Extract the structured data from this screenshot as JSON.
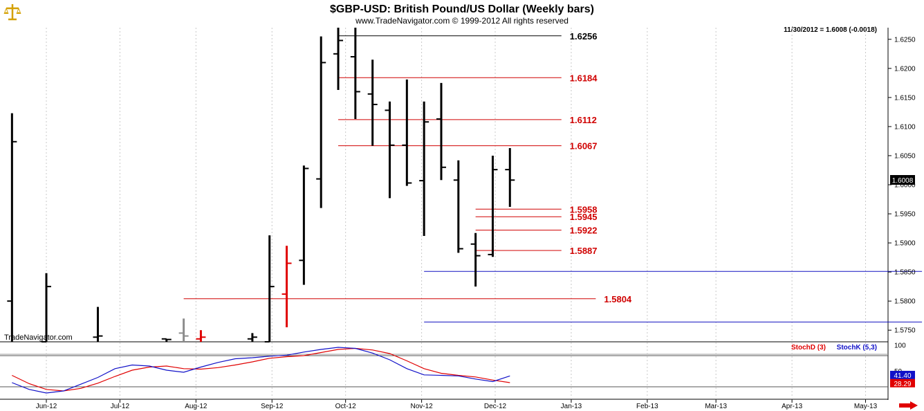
{
  "header": {
    "title": "$GBP-USD:  British Pound/US Dollar  (Weekly bars)",
    "subtitle": "www.TradeNavigator.com © 1999-2012 All rights reserved",
    "last_info": "11/30/2012 = 1.6008 (-0.0018)",
    "watermark": "TradeNavigator.com"
  },
  "colors": {
    "bar": "#000000",
    "bar_gray": "#8c8c8c",
    "bar_red": "#e00000",
    "red_level": "#d00000",
    "blue_level": "#1010c0",
    "stoch_d": "#e00000",
    "stoch_k": "#1010c8",
    "grid": "#c8c8c8",
    "logo": "#d4a000"
  },
  "chart_data": {
    "type": "ohlc",
    "symbol": "$GBP-USD",
    "interval": "weekly",
    "ylim": [
      1.573,
      1.627
    ],
    "y_ticks": [
      "1.6250",
      "1.6200",
      "1.6150",
      "1.6100",
      "1.6050",
      "1.6000",
      "1.5950",
      "1.5900",
      "1.5850",
      "1.5800",
      "1.5750"
    ],
    "x_labels": [
      "Jun-12",
      "Jul-12",
      "Aug-12",
      "Sep-12",
      "Oct-12",
      "Nov-12",
      "Dec-12",
      "Jan-13",
      "Feb-13",
      "Mar-13",
      "Apr-13",
      "May-13"
    ],
    "last_value_label": "1.6008",
    "bars": [
      {
        "date": "2012-05-18",
        "open": 1.58,
        "high": 1.6123,
        "low": 1.573,
        "close": 1.6074,
        "color": "black"
      },
      {
        "date": "2012-06-01",
        "open": 1.573,
        "high": 1.5848,
        "low": 1.573,
        "close": 1.5825,
        "color": "black"
      },
      {
        "date": "2012-06-22",
        "open": 1.5738,
        "high": 1.579,
        "low": 1.573,
        "close": 1.574,
        "color": "black"
      },
      {
        "date": "2012-07-20",
        "open": 1.5735,
        "high": 1.5735,
        "low": 1.573,
        "close": 1.5734,
        "color": "black"
      },
      {
        "date": "2012-07-27",
        "open": 1.5745,
        "high": 1.577,
        "low": 1.573,
        "close": 1.574,
        "color": "gray"
      },
      {
        "date": "2012-08-03",
        "open": 1.5735,
        "high": 1.575,
        "low": 1.573,
        "close": 1.5738,
        "color": "red"
      },
      {
        "date": "2012-08-24",
        "open": 1.5735,
        "high": 1.5745,
        "low": 1.573,
        "close": 1.5738,
        "color": "black"
      },
      {
        "date": "2012-08-31",
        "open": 1.573,
        "high": 1.5913,
        "low": 1.573,
        "close": 1.5825,
        "color": "black"
      },
      {
        "date": "2012-09-07",
        "open": 1.5812,
        "high": 1.5895,
        "low": 1.5755,
        "close": 1.5865,
        "color": "red"
      },
      {
        "date": "2012-09-14",
        "open": 1.587,
        "high": 1.6033,
        "low": 1.5828,
        "close": 1.6028,
        "color": "black"
      },
      {
        "date": "2012-09-21",
        "open": 1.601,
        "high": 1.6255,
        "low": 1.596,
        "close": 1.621,
        "color": "black"
      },
      {
        "date": "2012-09-28",
        "open": 1.6225,
        "high": 1.627,
        "low": 1.6163,
        "close": 1.6248,
        "color": "black"
      },
      {
        "date": "2012-10-05",
        "open": 1.622,
        "high": 1.627,
        "low": 1.6113,
        "close": 1.616,
        "color": "black"
      },
      {
        "date": "2012-10-12",
        "open": 1.6156,
        "high": 1.6215,
        "low": 1.6067,
        "close": 1.6138,
        "color": "black"
      },
      {
        "date": "2012-10-19",
        "open": 1.6128,
        "high": 1.6143,
        "low": 1.5977,
        "close": 1.6068,
        "color": "black"
      },
      {
        "date": "2012-10-26",
        "open": 1.6068,
        "high": 1.6181,
        "low": 1.5998,
        "close": 1.6003,
        "color": "black"
      },
      {
        "date": "2012-11-02",
        "open": 1.6007,
        "high": 1.6143,
        "low": 1.5912,
        "close": 1.6108,
        "color": "black"
      },
      {
        "date": "2012-11-09",
        "open": 1.6113,
        "high": 1.6175,
        "low": 1.6008,
        "close": 1.603,
        "color": "black"
      },
      {
        "date": "2012-11-16",
        "open": 1.6008,
        "high": 1.6042,
        "low": 1.5883,
        "close": 1.589,
        "color": "black"
      },
      {
        "date": "2012-11-23",
        "open": 1.5898,
        "high": 1.5917,
        "low": 1.5825,
        "close": 1.5878,
        "color": "black"
      },
      {
        "date": "2012-11-30",
        "open": 1.588,
        "high": 1.605,
        "low": 1.5876,
        "close": 1.6026,
        "color": "black"
      },
      {
        "date": "2012-12-07",
        "open": 1.6026,
        "high": 1.6063,
        "low": 1.5962,
        "close": 1.6008,
        "color": "black"
      }
    ],
    "levels": [
      {
        "value": 1.6256,
        "label": "1.6256",
        "color": "black",
        "x_from": "2012-09-28",
        "x_to": "2012-12-28"
      },
      {
        "value": 1.6184,
        "label": "1.6184",
        "color": "red",
        "x_from": "2012-09-28",
        "x_to": "2012-12-28"
      },
      {
        "value": 1.6112,
        "label": "1.6112",
        "color": "red",
        "x_from": "2012-09-28",
        "x_to": "2012-12-28"
      },
      {
        "value": 1.6067,
        "label": "1.6067",
        "color": "red",
        "x_from": "2012-09-28",
        "x_to": "2012-12-28"
      },
      {
        "value": 1.5958,
        "label": "1.5958",
        "color": "red",
        "x_from": "2012-11-23",
        "x_to": "2012-12-28"
      },
      {
        "value": 1.5945,
        "label": "1.5945",
        "color": "red",
        "x_from": "2012-11-23",
        "x_to": "2012-12-28"
      },
      {
        "value": 1.5922,
        "label": "1.5922",
        "color": "red",
        "x_from": "2012-11-23",
        "x_to": "2012-12-28"
      },
      {
        "value": 1.5887,
        "label": "1.5887",
        "color": "red",
        "x_from": "2012-11-23",
        "x_to": "2012-12-28"
      },
      {
        "value": 1.5851,
        "label": "1.5851",
        "color": "blue",
        "x_from": "2012-11-02",
        "x_to": "2013-05-24"
      },
      {
        "value": 1.5804,
        "label": "1.5804",
        "color": "red",
        "x_from": "2012-07-27",
        "x_to": "2013-01-11"
      },
      {
        "value": 1.5764,
        "label": "1.5764",
        "color": "blue",
        "x_from": "2012-11-02",
        "x_to": "2013-05-24"
      }
    ],
    "stochastic": {
      "ylim": [
        0,
        100
      ],
      "y_ticks": [
        "100",
        "50"
      ],
      "ref_lines": [
        80,
        20
      ],
      "d_label": "StochD (3)",
      "k_label": "StochK (5,3)",
      "d_value_label": "28.29",
      "k_value_label": "41.40",
      "x": [
        "2012-05-18",
        "2012-05-25",
        "2012-06-01",
        "2012-06-08",
        "2012-06-15",
        "2012-06-22",
        "2012-06-29",
        "2012-07-06",
        "2012-07-13",
        "2012-07-20",
        "2012-07-27",
        "2012-08-03",
        "2012-08-10",
        "2012-08-17",
        "2012-08-24",
        "2012-08-31",
        "2012-09-07",
        "2012-09-14",
        "2012-09-21",
        "2012-09-28",
        "2012-10-05",
        "2012-10-12",
        "2012-10-19",
        "2012-10-26",
        "2012-11-02",
        "2012-11-09",
        "2012-11-16",
        "2012-11-23",
        "2012-11-30",
        "2012-12-07"
      ],
      "k": [
        28,
        15,
        8,
        12,
        25,
        38,
        55,
        62,
        60,
        52,
        48,
        58,
        67,
        74,
        76,
        79,
        81,
        87,
        92,
        96,
        94,
        85,
        72,
        55,
        43,
        42,
        41,
        35,
        30,
        41
      ],
      "d": [
        42,
        26,
        15,
        12,
        17,
        27,
        40,
        52,
        58,
        60,
        55,
        54,
        57,
        62,
        68,
        75,
        78,
        80,
        86,
        92,
        94,
        91,
        84,
        70,
        55,
        46,
        42,
        39,
        33,
        28
      ]
    }
  }
}
